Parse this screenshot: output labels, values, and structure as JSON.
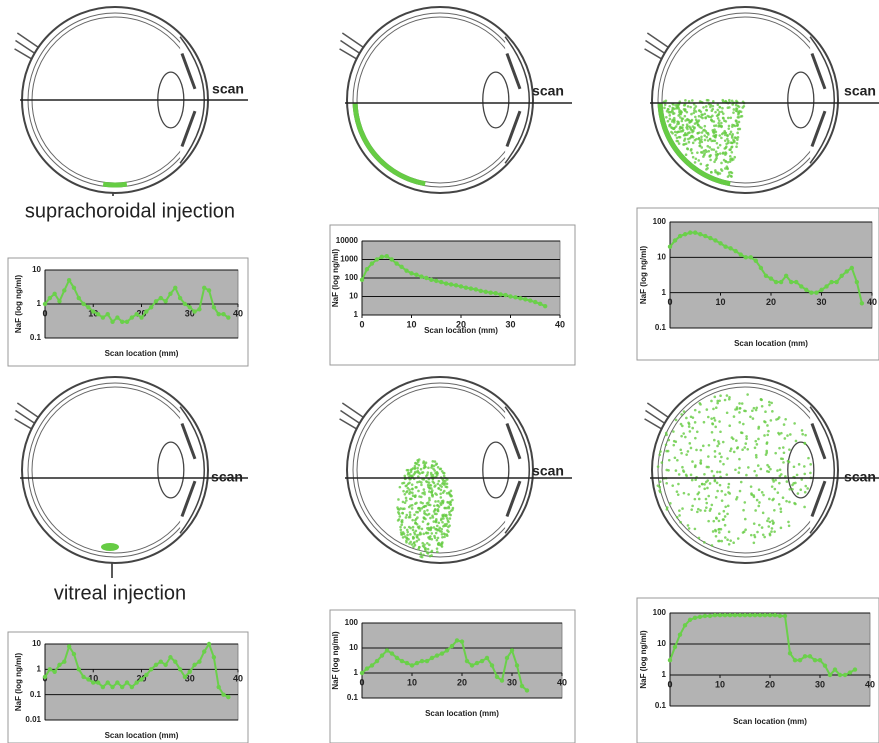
{
  "figure": {
    "scan_labels": [
      "scan",
      "scan",
      "scan",
      "scan",
      "scan",
      "scan"
    ],
    "injection_labels": [
      "suprachoroidal injection",
      "vitreal injection"
    ]
  },
  "chart_data": [
    {
      "type": "line",
      "color": "#6ad04a",
      "background": "#b3b3b3",
      "log_y": true,
      "ylabel": "NaF (log ng/ml)",
      "xlabel": "Scan location (mm)",
      "xlim": [
        0,
        40
      ],
      "xticks": [
        0,
        10,
        20,
        30,
        40
      ],
      "ylim": [
        0.1,
        10
      ],
      "yticks": [
        0.1,
        1,
        10
      ],
      "x": [
        0,
        1,
        2,
        3,
        4,
        5,
        6,
        7,
        8,
        9,
        10,
        11,
        12,
        13,
        14,
        15,
        16,
        17,
        18,
        19,
        20,
        21,
        22,
        23,
        24,
        25,
        26,
        27,
        28,
        29,
        30,
        31,
        32,
        33,
        34,
        35,
        36,
        37,
        38
      ],
      "values": [
        1,
        1.5,
        2,
        1.2,
        2.5,
        5,
        3,
        1.5,
        1,
        0.8,
        0.6,
        0.5,
        0.4,
        0.5,
        0.3,
        0.4,
        0.3,
        0.3,
        0.4,
        0.5,
        0.4,
        0.6,
        0.8,
        1.2,
        1.5,
        1.2,
        2,
        3,
        1.5,
        1,
        0.8,
        0.6,
        0.7,
        3,
        2.5,
        0.8,
        0.5,
        0.5,
        0.4
      ]
    },
    {
      "type": "line",
      "color": "#6ad04a",
      "background": "#b3b3b3",
      "log_y": true,
      "ylabel": "NaF (log ng/ml)",
      "xlabel": "Scan location (mm)",
      "xlim": [
        0,
        40
      ],
      "xticks": [
        0,
        10,
        20,
        30,
        40
      ],
      "ylim": [
        1,
        10000
      ],
      "yticks": [
        1,
        10,
        100,
        1000,
        10000
      ],
      "x": [
        0,
        1,
        2,
        3,
        4,
        5,
        6,
        7,
        8,
        9,
        10,
        11,
        12,
        13,
        14,
        15,
        16,
        17,
        18,
        19,
        20,
        21,
        22,
        23,
        24,
        25,
        26,
        27,
        28,
        29,
        30,
        31,
        32,
        33,
        34,
        35,
        36,
        37
      ],
      "values": [
        80,
        300,
        600,
        1000,
        1400,
        1500,
        1000,
        600,
        400,
        250,
        180,
        150,
        120,
        100,
        80,
        70,
        60,
        50,
        45,
        40,
        35,
        30,
        27,
        24,
        20,
        18,
        16,
        15,
        13,
        12,
        10,
        9,
        8,
        7,
        6,
        5,
        4,
        3
      ]
    },
    {
      "type": "line",
      "color": "#6ad04a",
      "background": "#b3b3b3",
      "log_y": true,
      "ylabel": "NaF (log ng/ml)",
      "xlabel": "Scan location (mm)",
      "xlim": [
        0,
        40
      ],
      "xticks": [
        0,
        10,
        20,
        30,
        40
      ],
      "ylim": [
        0.1,
        100
      ],
      "yticks": [
        0.1,
        1,
        10,
        100
      ],
      "x": [
        0,
        1,
        2,
        3,
        4,
        5,
        6,
        7,
        8,
        9,
        10,
        11,
        12,
        13,
        14,
        15,
        16,
        17,
        18,
        19,
        20,
        21,
        22,
        23,
        24,
        25,
        26,
        27,
        28,
        29,
        30,
        31,
        32,
        33,
        34,
        35,
        36,
        37,
        38
      ],
      "values": [
        20,
        30,
        40,
        45,
        50,
        50,
        45,
        40,
        35,
        30,
        25,
        20,
        18,
        15,
        12,
        10,
        10,
        8,
        5,
        3,
        2.5,
        2,
        2,
        3,
        2,
        2,
        1.5,
        1.2,
        1,
        1,
        1.2,
        1.5,
        2,
        2,
        3,
        4,
        5,
        2,
        0.5
      ]
    },
    {
      "type": "line",
      "color": "#6ad04a",
      "background": "#b3b3b3",
      "log_y": true,
      "ylabel": "NaF (log ng/ml)",
      "xlabel": "Scan location (mm)",
      "xlim": [
        0,
        40
      ],
      "xticks": [
        0,
        10,
        20,
        30,
        40
      ],
      "ylim": [
        0.01,
        10
      ],
      "yticks": [
        0.01,
        0.1,
        1,
        10
      ],
      "x": [
        0,
        1,
        2,
        3,
        4,
        5,
        6,
        7,
        8,
        9,
        10,
        11,
        12,
        13,
        14,
        15,
        16,
        17,
        18,
        19,
        20,
        21,
        22,
        23,
        24,
        25,
        26,
        27,
        28,
        29,
        30,
        31,
        32,
        33,
        34,
        35,
        36,
        37,
        38
      ],
      "values": [
        0.5,
        1,
        0.8,
        1.5,
        2,
        8,
        4,
        1,
        0.5,
        0.4,
        0.3,
        0.3,
        0.2,
        0.3,
        0.2,
        0.3,
        0.2,
        0.3,
        0.2,
        0.3,
        0.4,
        0.6,
        1,
        1.5,
        2,
        1.5,
        3,
        2,
        1,
        0.5,
        0.8,
        1.5,
        2,
        5,
        10,
        3,
        0.2,
        0.1,
        0.08
      ]
    },
    {
      "type": "line",
      "color": "#6ad04a",
      "background": "#b3b3b3",
      "log_y": true,
      "ylabel": "NaF (log ng/ml)",
      "xlabel": "Scan location (mm)",
      "xlim": [
        0,
        40
      ],
      "xticks": [
        0,
        10,
        20,
        30,
        40
      ],
      "ylim": [
        0.1,
        100
      ],
      "yticks": [
        0.1,
        1,
        10,
        100
      ],
      "x": [
        0,
        1,
        2,
        3,
        4,
        5,
        6,
        7,
        8,
        9,
        10,
        11,
        12,
        13,
        14,
        15,
        16,
        17,
        18,
        19,
        20,
        21,
        22,
        23,
        24,
        25,
        26,
        27,
        28,
        29,
        30,
        31,
        32,
        33
      ],
      "values": [
        1,
        1.5,
        2,
        3,
        5,
        8,
        6,
        4,
        3,
        2.5,
        2,
        2.5,
        3,
        3,
        4,
        5,
        6,
        8,
        12,
        20,
        18,
        3,
        2,
        2.5,
        3,
        4,
        2,
        0.7,
        0.5,
        4,
        8,
        2,
        0.3,
        0.2
      ]
    },
    {
      "type": "line",
      "color": "#6ad04a",
      "background": "#b3b3b3",
      "log_y": true,
      "ylabel": "NaF (log ng/ml)",
      "xlabel": "Scan location (mm)",
      "xlim": [
        0,
        40
      ],
      "xticks": [
        0,
        10,
        20,
        30,
        40
      ],
      "ylim": [
        0.1,
        100
      ],
      "yticks": [
        0.1,
        1,
        10,
        100
      ],
      "x": [
        0,
        1,
        2,
        3,
        4,
        5,
        6,
        7,
        8,
        9,
        10,
        11,
        12,
        13,
        14,
        15,
        16,
        17,
        18,
        19,
        20,
        21,
        22,
        23,
        24,
        25,
        26,
        27,
        28,
        29,
        30,
        31,
        32,
        33,
        34,
        35,
        36,
        37
      ],
      "values": [
        3,
        8,
        20,
        40,
        60,
        70,
        75,
        80,
        80,
        85,
        85,
        85,
        85,
        85,
        85,
        85,
        85,
        85,
        85,
        85,
        85,
        85,
        80,
        80,
        5,
        3,
        3,
        4,
        4,
        3,
        3,
        2,
        1,
        1.5,
        1,
        1,
        1.2,
        1.5
      ]
    }
  ]
}
